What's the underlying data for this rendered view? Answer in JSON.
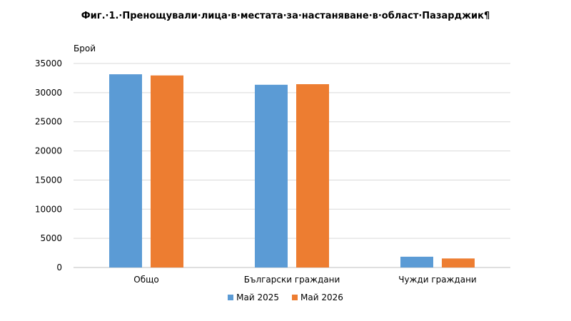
{
  "chart_data": {
    "type": "bar",
    "title": "Фиг.·1.·Пренощували·лица·в·местата·за·настаняване·в·област·Пазарджик¶",
    "ylabel": "Брой",
    "xlabel": "",
    "categories": [
      "Общо",
      "Български граждани",
      "Чужди граждани"
    ],
    "series": [
      {
        "name": "Май 2025",
        "color": "#5b9bd5",
        "values": [
          33150,
          31350,
          1850
        ]
      },
      {
        "name": "Май 2026",
        "color": "#ed7d31",
        "values": [
          32950,
          31450,
          1550
        ]
      }
    ],
    "ylim": [
      0,
      35000
    ],
    "yticks": [
      0,
      5000,
      10000,
      15000,
      20000,
      25000,
      30000,
      35000
    ],
    "grid": true,
    "legend_position": "bottom"
  }
}
